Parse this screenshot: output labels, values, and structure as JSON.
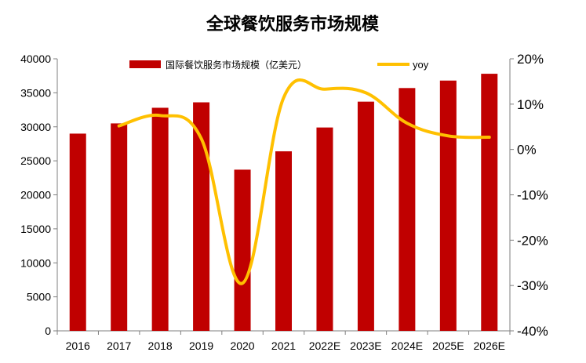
{
  "chart_data": {
    "type": "bar+line",
    "title": "全球餐饮服务市场规模",
    "categories": [
      "2016",
      "2017",
      "2018",
      "2019",
      "2020",
      "2021",
      "2022E",
      "2023E",
      "2024E",
      "2025E",
      "2026E"
    ],
    "series": [
      {
        "name": "国际餐饮服务市场规模（亿美元）",
        "type": "bar",
        "axis": "left",
        "color": "#c00000",
        "values": [
          29000,
          30500,
          32800,
          33600,
          23700,
          26400,
          29900,
          33700,
          35700,
          36800,
          37800
        ]
      },
      {
        "name": "yoy",
        "type": "line",
        "axis": "right",
        "color": "#ffc000",
        "values": [
          null,
          5.2,
          7.5,
          2.4,
          -29.5,
          11.4,
          13.3,
          12.5,
          5.8,
          3.0,
          2.7
        ]
      }
    ],
    "left_axis": {
      "min": 0,
      "max": 40000,
      "step": 5000,
      "ticks": [
        "0",
        "5000",
        "10000",
        "15000",
        "20000",
        "25000",
        "30000",
        "35000",
        "40000"
      ]
    },
    "right_axis": {
      "min": -40,
      "max": 20,
      "step": 10,
      "ticks": [
        "-40%",
        "-30%",
        "-20%",
        "-10%",
        "0%",
        "10%",
        "20%"
      ]
    },
    "grid": false,
    "legend": "top"
  }
}
